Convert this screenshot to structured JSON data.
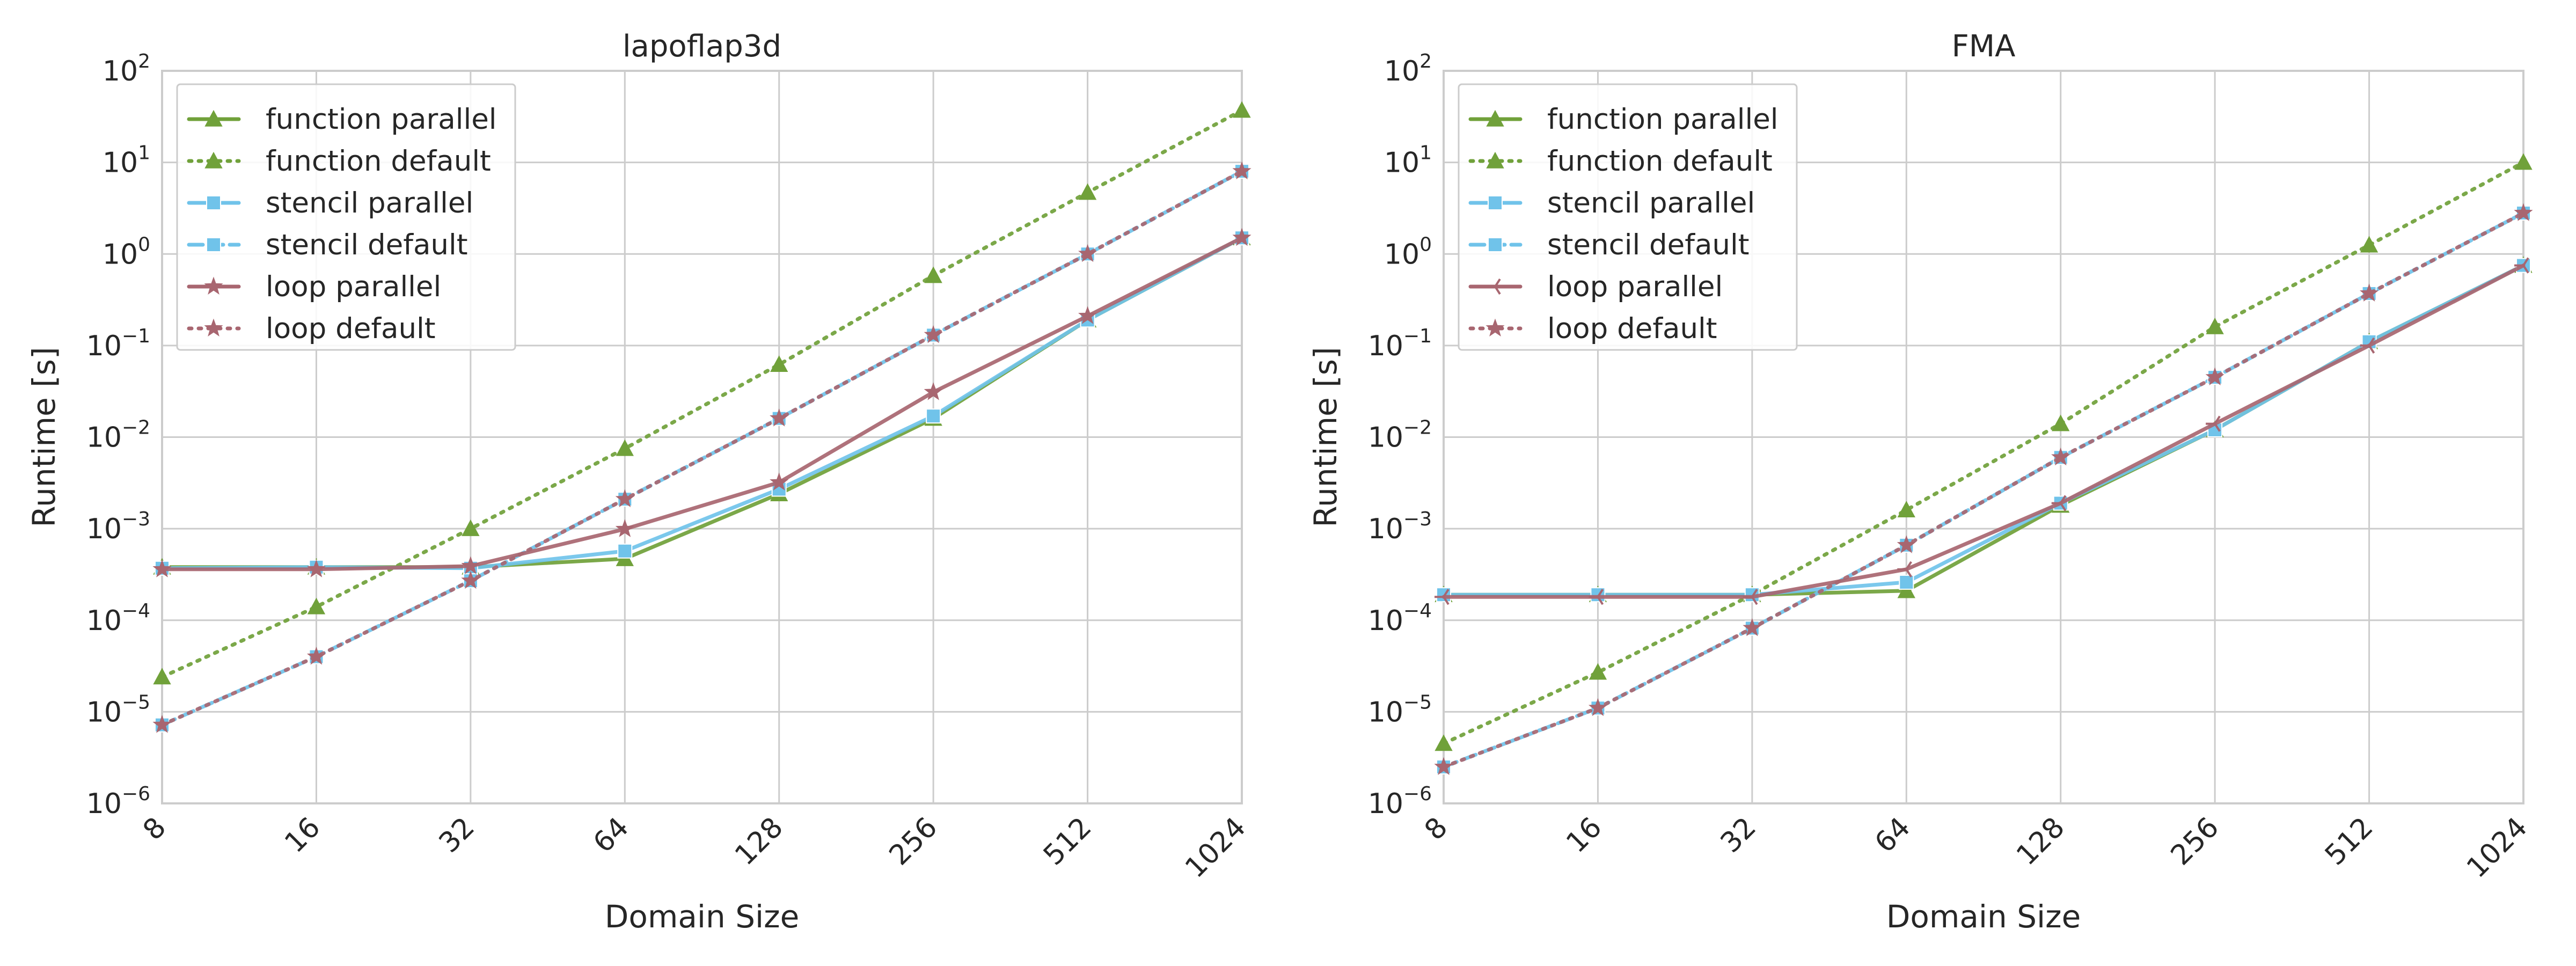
{
  "figure": {
    "background": "#ffffff",
    "grid_color": "#cccccc"
  },
  "chart_data": [
    {
      "type": "line",
      "title": "lapoflap3d",
      "xlabel": "Domain Size",
      "ylabel": "Runtime [s]",
      "xscale": "log2",
      "yscale": "log",
      "ylim": [
        1e-06,
        100
      ],
      "ytick_labels": [
        "10",
        "10",
        "10",
        "10",
        "10",
        "10",
        "10",
        "10",
        "10"
      ],
      "ytick_exponents": [
        "−6",
        "−5",
        "−4",
        "−3",
        "−2",
        "−1",
        "0",
        "1",
        "2"
      ],
      "grid": true,
      "legend_position": "top-left",
      "categories": [
        "8",
        "16",
        "32",
        "64",
        "128",
        "256",
        "512",
        "1024"
      ],
      "x": [
        8,
        16,
        32,
        64,
        128,
        256,
        512,
        1024
      ],
      "series": [
        {
          "name": "function parallel",
          "color": "#70a13a",
          "style": "solid",
          "marker": "triangle",
          "values": [
            0.00038,
            0.00038,
            0.00038,
            0.00047,
            0.0024,
            0.016,
            0.19,
            1.5
          ]
        },
        {
          "name": "function default",
          "color": "#70a13a",
          "style": "dotted",
          "marker": "triangle",
          "values": [
            2.4e-05,
            0.00014,
            0.001,
            0.0075,
            0.062,
            0.58,
            4.7,
            37
          ]
        },
        {
          "name": "stencil parallel",
          "color": "#70c3ea",
          "style": "solid",
          "marker": "square",
          "values": [
            0.00037,
            0.00038,
            0.00037,
            0.00057,
            0.0027,
            0.017,
            0.19,
            1.5
          ]
        },
        {
          "name": "stencil default",
          "color": "#70c3ea",
          "style": "dashed",
          "marker": "square",
          "values": [
            7.2e-06,
            4e-05,
            0.00027,
            0.0021,
            0.016,
            0.13,
            1.0,
            8.0
          ]
        },
        {
          "name": "loop parallel",
          "color": "#a86670",
          "style": "solid",
          "marker": "star",
          "values": [
            0.00036,
            0.00036,
            0.00039,
            0.00099,
            0.0032,
            0.031,
            0.21,
            1.5
          ]
        },
        {
          "name": "loop default",
          "color": "#a86670",
          "style": "dotted",
          "marker": "star",
          "values": [
            7.2e-06,
            4e-05,
            0.00027,
            0.0021,
            0.016,
            0.13,
            1.0,
            8.0
          ]
        }
      ]
    },
    {
      "type": "line",
      "title": "FMA",
      "xlabel": "Domain Size",
      "ylabel": "Runtime [s]",
      "xscale": "log2",
      "yscale": "log",
      "ylim": [
        1e-06,
        100
      ],
      "ytick_labels": [
        "10",
        "10",
        "10",
        "10",
        "10",
        "10",
        "10",
        "10",
        "10"
      ],
      "ytick_exponents": [
        "−6",
        "−5",
        "−4",
        "−3",
        "−2",
        "−1",
        "0",
        "1",
        "2"
      ],
      "grid": true,
      "legend_position": "top-left",
      "categories": [
        "8",
        "16",
        "32",
        "64",
        "128",
        "256",
        "512",
        "1024"
      ],
      "x": [
        8,
        16,
        32,
        64,
        128,
        256,
        512,
        1024
      ],
      "series": [
        {
          "name": "function parallel",
          "color": "#70a13a",
          "style": "solid",
          "marker": "triangle",
          "values": [
            0.00019,
            0.00019,
            0.00019,
            0.00021,
            0.0018,
            0.012,
            0.11,
            0.75
          ]
        },
        {
          "name": "function default",
          "color": "#70a13a",
          "style": "dotted",
          "marker": "triangle",
          "values": [
            4.5e-06,
            2.7e-05,
            0.00019,
            0.0016,
            0.014,
            0.16,
            1.25,
            10
          ]
        },
        {
          "name": "stencil parallel",
          "color": "#70c3ea",
          "style": "solid",
          "marker": "square",
          "values": [
            0.00019,
            0.00019,
            0.00019,
            0.00026,
            0.0019,
            0.012,
            0.11,
            0.75
          ]
        },
        {
          "name": "stencil default",
          "color": "#70c3ea",
          "style": "dashed",
          "marker": "square",
          "values": [
            2.5e-06,
            1.1e-05,
            8.2e-05,
            0.00066,
            0.006,
            0.045,
            0.37,
            2.8
          ]
        },
        {
          "name": "loop parallel",
          "color": "#a86670",
          "style": "solid",
          "marker": "tri_left",
          "values": [
            0.00018,
            0.00018,
            0.00018,
            0.00036,
            0.0019,
            0.014,
            0.1,
            0.75
          ]
        },
        {
          "name": "loop default",
          "color": "#a86670",
          "style": "dotted",
          "marker": "star",
          "values": [
            2.5e-06,
            1.1e-05,
            8.2e-05,
            0.00066,
            0.006,
            0.045,
            0.37,
            2.8
          ]
        }
      ]
    }
  ]
}
